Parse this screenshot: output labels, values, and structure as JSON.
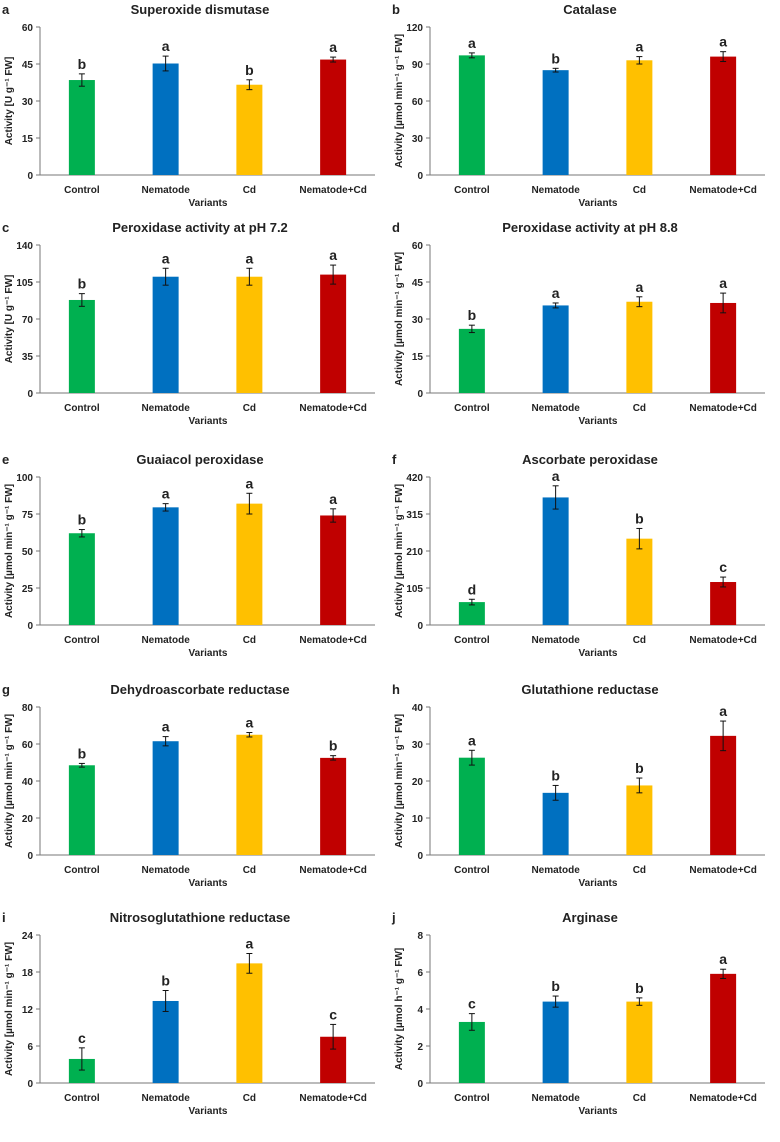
{
  "colors": [
    "#00B050",
    "#0070C0",
    "#FFC000",
    "#C00000"
  ],
  "chart_data": [
    {
      "panel": "a",
      "type": "bar",
      "title": "Superoxide dismutase",
      "ylabel": "Activity [U g⁻¹ FW]",
      "xlabel": "Variants",
      "categories": [
        "Control",
        "Nematode",
        "Cd",
        "Nematode+Cd"
      ],
      "values": [
        38.5,
        45.2,
        36.6,
        46.8
      ],
      "errors": [
        2.5,
        3,
        2,
        1
      ],
      "letters": [
        "b",
        "a",
        "b",
        "a"
      ],
      "ylim": [
        0,
        60
      ],
      "ticks": [
        0,
        15,
        30,
        45,
        60
      ]
    },
    {
      "panel": "b",
      "type": "bar",
      "title": "Catalase",
      "ylabel": "Activity [µmol min⁻¹ g⁻¹ FW]",
      "xlabel": "Variants",
      "categories": [
        "Control",
        "Nematode",
        "Cd",
        "Nematode+Cd"
      ],
      "values": [
        97,
        85,
        93,
        96
      ],
      "errors": [
        2,
        1.5,
        3,
        4
      ],
      "letters": [
        "a",
        "b",
        "a",
        "a"
      ],
      "ylim": [
        0,
        120
      ],
      "ticks": [
        0,
        30,
        60,
        90,
        120
      ]
    },
    {
      "panel": "c",
      "type": "bar",
      "title": "Peroxidase activity at pH 7.2",
      "ylabel": "Activity [U g⁻¹ FW]",
      "xlabel": "Variants",
      "categories": [
        "Control",
        "Nematode",
        "Cd",
        "Nematode+Cd"
      ],
      "values": [
        88,
        110,
        110,
        112
      ],
      "errors": [
        6,
        8,
        8,
        9
      ],
      "letters": [
        "b",
        "a",
        "a",
        "a"
      ],
      "ylim": [
        0,
        140
      ],
      "ticks": [
        0,
        35,
        70,
        105,
        140
      ]
    },
    {
      "panel": "d",
      "type": "bar",
      "title": "Peroxidase activity at pH 8.8",
      "ylabel": "Activity [µmol min⁻¹ g⁻¹ FW]",
      "xlabel": "Variants",
      "categories": [
        "Control",
        "Nematode",
        "Cd",
        "Nematode+Cd"
      ],
      "values": [
        26,
        35.5,
        37,
        36.5
      ],
      "errors": [
        1.5,
        1,
        2,
        4
      ],
      "letters": [
        "b",
        "a",
        "a",
        "a"
      ],
      "ylim": [
        0,
        60
      ],
      "ticks": [
        0,
        15,
        30,
        45,
        60
      ]
    },
    {
      "panel": "e",
      "type": "bar",
      "title": "Guaiacol peroxidase",
      "ylabel": "Activity [µmol min⁻¹ g⁻¹ FW]",
      "xlabel": "Variants",
      "categories": [
        "Control",
        "Nematode",
        "Cd",
        "Nematode+Cd"
      ],
      "values": [
        62,
        79.5,
        82,
        74
      ],
      "errors": [
        2.5,
        2.5,
        7,
        4.5
      ],
      "letters": [
        "b",
        "a",
        "a",
        "a"
      ],
      "ylim": [
        0,
        100
      ],
      "ticks": [
        0,
        25,
        50,
        75,
        100
      ]
    },
    {
      "panel": "f",
      "type": "bar",
      "title": "Ascorbate peroxidase",
      "ylabel": "Activity [µmol min⁻¹ g⁻¹ FW]",
      "xlabel": "Variants",
      "categories": [
        "Control",
        "Nematode",
        "Cd",
        "Nematode+Cd"
      ],
      "values": [
        65,
        362,
        245,
        122
      ],
      "errors": [
        8,
        33,
        29,
        14
      ],
      "letters": [
        "d",
        "a",
        "b",
        "c"
      ],
      "ylim": [
        0,
        420
      ],
      "ticks": [
        0,
        105,
        210,
        315,
        420
      ]
    },
    {
      "panel": "g",
      "type": "bar",
      "title": "Dehydroascorbate reductase",
      "ylabel": "Activity [µmol min⁻¹ g⁻¹ FW]",
      "xlabel": "Variants",
      "categories": [
        "Control",
        "Nematode",
        "Cd",
        "Nematode+Cd"
      ],
      "values": [
        48.5,
        61.5,
        65,
        52.5
      ],
      "errors": [
        1,
        2.5,
        1.2,
        1.2
      ],
      "letters": [
        "b",
        "a",
        "a",
        "b"
      ],
      "ylim": [
        0,
        80
      ],
      "ticks": [
        0,
        20,
        40,
        60,
        80
      ]
    },
    {
      "panel": "h",
      "type": "bar",
      "title": "Glutathione reductase",
      "ylabel": "Activity [µmol min⁻¹ g⁻¹ FW]",
      "xlabel": "Variants",
      "categories": [
        "Control",
        "Nematode",
        "Cd",
        "Nematode+Cd"
      ],
      "values": [
        26.3,
        16.8,
        18.8,
        32.2
      ],
      "errors": [
        2,
        2,
        2,
        4
      ],
      "letters": [
        "a",
        "b",
        "b",
        "a"
      ],
      "ylim": [
        0,
        40
      ],
      "ticks": [
        0,
        10,
        20,
        30,
        40
      ]
    },
    {
      "panel": "i",
      "type": "bar",
      "title": "Nitrosoglutathione reductase",
      "ylabel": "Activity [µmol min⁻¹ g⁻¹ FW]",
      "xlabel": "Variants",
      "categories": [
        "Control",
        "Nematode",
        "Cd",
        "Nematode+Cd"
      ],
      "values": [
        3.9,
        13.3,
        19.4,
        7.5
      ],
      "errors": [
        1.8,
        1.7,
        1.6,
        2
      ],
      "letters": [
        "c",
        "b",
        "a",
        "c"
      ],
      "ylim": [
        0,
        24
      ],
      "ticks": [
        0,
        6,
        12,
        18,
        24
      ]
    },
    {
      "panel": "j",
      "type": "bar",
      "title": "Arginase",
      "ylabel": "Activity [µmol h⁻¹ g⁻¹ FW]",
      "xlabel": "Variants",
      "categories": [
        "Control",
        "Nematode",
        "Cd",
        "Nematode+Cd"
      ],
      "values": [
        3.3,
        4.4,
        4.4,
        5.9
      ],
      "errors": [
        0.45,
        0.3,
        0.2,
        0.25
      ],
      "letters": [
        "c",
        "b",
        "b",
        "a"
      ],
      "ylim": [
        0,
        8
      ],
      "ticks": [
        0,
        2,
        4,
        6,
        8
      ]
    }
  ]
}
